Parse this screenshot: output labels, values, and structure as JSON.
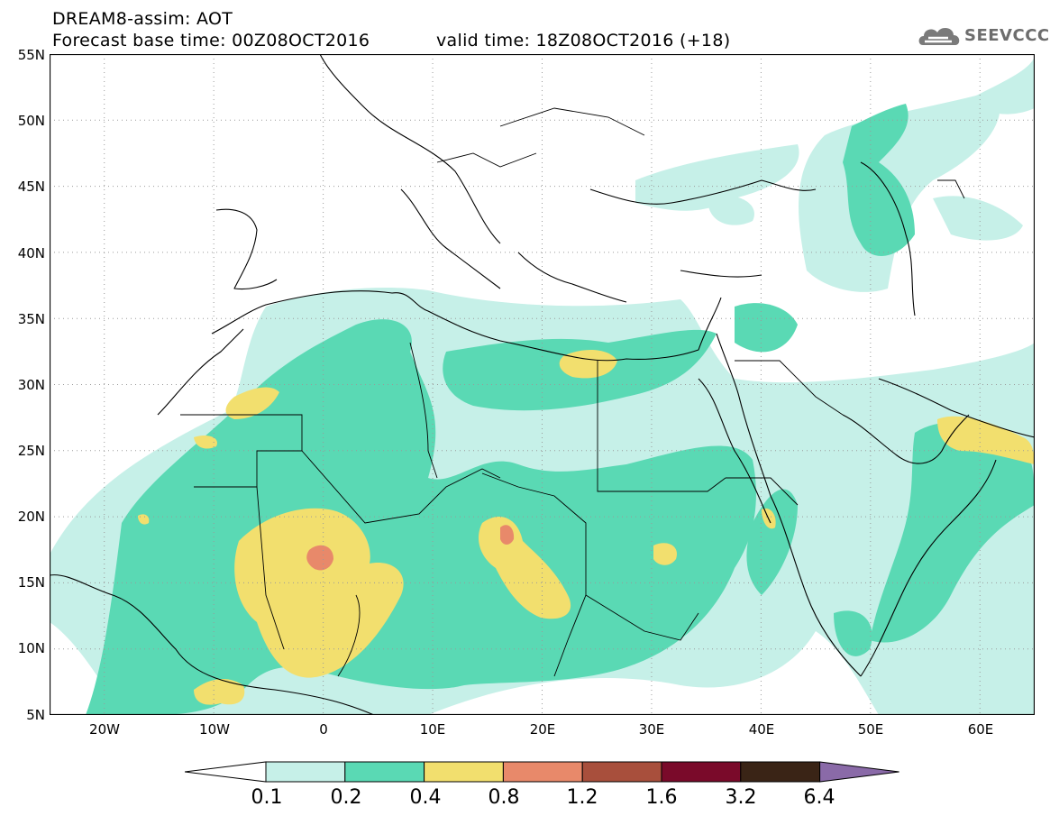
{
  "header": {
    "line1": "DREAM8-assim: AOT",
    "line2_left": "Forecast base time: 00Z08OCT2016",
    "line2_right": "valid time: 18Z08OCT2016 (+18)",
    "logo_text": "SEEVCCC",
    "logo_icon": "cloud-logo-icon"
  },
  "axes": {
    "lat_labels": [
      "55N",
      "50N",
      "45N",
      "40N",
      "35N",
      "30N",
      "25N",
      "20N",
      "15N",
      "10N",
      "5N"
    ],
    "lon_labels": [
      "20W",
      "10W",
      "0",
      "10E",
      "20E",
      "30E",
      "40E",
      "50E",
      "60E"
    ]
  },
  "map": {
    "lon_range": [
      -25,
      65
    ],
    "lat_range": [
      5,
      55
    ],
    "gridlines": true,
    "colors": {
      "c01": "#c6f0e8",
      "c02": "#5ad9b4",
      "c04": "#f2df6e",
      "c08": "#e8896a",
      "c12": "#a84f3c",
      "c16": "#7a0a2a",
      "c32": "#3a2416",
      "c64": "#8a6aa8"
    }
  },
  "legend": {
    "labels": [
      "0.1",
      "0.2",
      "0.4",
      "0.8",
      "1.2",
      "1.6",
      "3.2",
      "6.4"
    ],
    "colors": [
      "#c6f0e8",
      "#5ad9b4",
      "#f2df6e",
      "#e8896a",
      "#a84f3c",
      "#7a0a2a",
      "#3a2416"
    ],
    "over_color": "#8a6aa8",
    "under_color": "#ffffff"
  }
}
